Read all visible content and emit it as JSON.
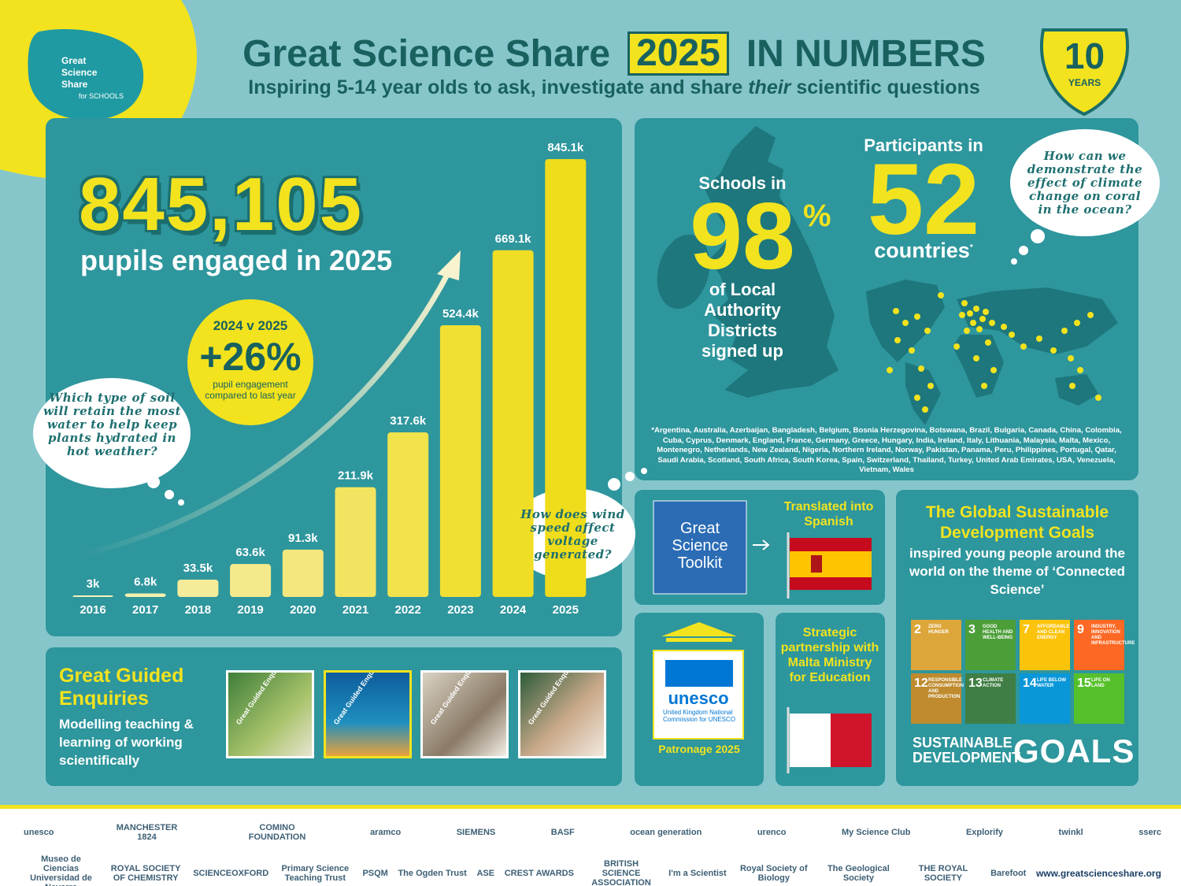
{
  "header": {
    "logo": [
      "Great",
      "Science",
      "Share",
      "for SCHOOLS"
    ],
    "title_before": "Great Science Share",
    "title_year": "2025",
    "title_after": "IN NUMBERS",
    "subtitle_before": "Inspiring 5-14 year olds to ask, investigate and share",
    "subtitle_em": "their",
    "subtitle_after": "scientific questions",
    "badge_number": "10",
    "badge_text": "YEARS"
  },
  "headline": {
    "number": "845,105",
    "text": "pupils engaged in 2025"
  },
  "growth": {
    "label": "2024 v 2025",
    "value": "+26%",
    "text": "pupil engagement compared to last year"
  },
  "questions": [
    "Which type of soil will retain the most water to help keep plants hydrated in hot weather?",
    "How does wind speed affect voltage generated?",
    "How can we demonstrate the effect of climate change on coral in the ocean?"
  ],
  "chart_data": {
    "type": "bar",
    "categories": [
      "2016",
      "2017",
      "2018",
      "2019",
      "2020",
      "2021",
      "2022",
      "2023",
      "2024",
      "2025"
    ],
    "values": [
      3000,
      6800,
      33500,
      63600,
      91300,
      211900,
      317600,
      524400,
      669100,
      845105
    ],
    "value_labels": [
      "3k",
      "6.8k",
      "33.5k",
      "63.6k",
      "91.3k",
      "211.9k",
      "317.6k",
      "524.4k",
      "669.1k",
      "845.1k"
    ],
    "colors": [
      "#f6f2b8",
      "#f5f0ad",
      "#f4ec9a",
      "#f4ea8c",
      "#f3e77e",
      "#f2e460",
      "#f2e24b",
      "#f1e034",
      "#f0de26",
      "#efdc1a"
    ]
  },
  "schools": {
    "intro": "Schools in",
    "value": "98",
    "unit": "%",
    "lines": [
      "of Local",
      "Authority",
      "Districts",
      "signed up"
    ]
  },
  "countries": {
    "intro": "Participants in",
    "value": "52",
    "text": "countries",
    "mark": "*",
    "footnote": "*Argentina, Australia, Azerbaijan, Bangladesh, Belgium, Bosnia Herzegovina, Botswana, Brazil, Bulgaria, Canada, China, Colombia, Cuba, Cyprus, Denmark, England, France, Germany, Greece, Hungary, India, Ireland, Italy, Lithuania, Malaysia, Malta, Mexico, Montenegro, Netherlands, New Zealand, Nigeria, Northern Ireland, Norway, Pakistan, Panama, Peru, Philippines, Portugal, Qatar, Saudi Arabia, Scotland, South Africa, South Korea, Spain, Switzerland, Thailand, Turkey, United Arab Emirates, USA, Venezuela, Vietnam, Wales"
  },
  "toolkit": {
    "name": "Great Science Toolkit",
    "translated": "Translated into Spanish"
  },
  "sdg": {
    "title": "The Global Sustainable Development Goals",
    "text": "inspired young people around the world on the theme of ‘Connected Science’",
    "tiles": [
      {
        "number": "2",
        "label": "ZERO HUNGER"
      },
      {
        "number": "3",
        "label": "GOOD HEALTH AND WELL-BEING"
      },
      {
        "number": "7",
        "label": "AFFORDABLE AND CLEAN ENERGY"
      },
      {
        "number": "9",
        "label": "INDUSTRY, INNOVATION AND INFRASTRUCTURE"
      },
      {
        "number": "12",
        "label": "RESPONSIBLE CONSUMPTION AND PRODUCTION"
      },
      {
        "number": "13",
        "label": "CLIMATE ACTION"
      },
      {
        "number": "14",
        "label": "LIFE BELOW WATER"
      },
      {
        "number": "15",
        "label": "LIFE ON LAND"
      }
    ],
    "footer": [
      "SUSTAINABLE",
      "DEVELOPMENT"
    ],
    "goals": "GOALS"
  },
  "unesco": {
    "name": "unesco",
    "text": "United Kingdom National Commission for UNESCO",
    "caption": "Patronage 2025"
  },
  "malta": {
    "text": "Strategic partnership with Malta Ministry for Education"
  },
  "enquiries": {
    "title": "Great Guided Enquiries",
    "text": "Modelling teaching & learning of working scientifically",
    "cards": [
      "Great Guided Enquiry",
      "Great Guided Enquiry",
      "Great Guided Enquiry",
      "Great Guided Enquiry"
    ]
  },
  "partners": {
    "row1": [
      "unesco",
      "MANCHESTER 1824",
      "COMINO FOUNDATION",
      "aramco",
      "SIEMENS",
      "BASF",
      "ocean generation",
      "urenco",
      "My Science Club",
      "Explorify",
      "twinkl",
      "sserc"
    ],
    "row2": [
      "Museo de Ciencias Universidad de Navarra",
      "ROYAL SOCIETY OF CHEMISTRY",
      "SCIENCEOXFORD",
      "Primary Science Teaching Trust",
      "PSQM",
      "The Ogden Trust",
      "ASE",
      "CREST AWARDS",
      "BRITISH SCIENCE ASSOCIATION",
      "I'm a Scientist",
      "Royal Society of Biology",
      "The Geological Society",
      "THE ROYAL SOCIETY",
      "Barefoot"
    ],
    "website": "www.greatscienceshare.org"
  }
}
